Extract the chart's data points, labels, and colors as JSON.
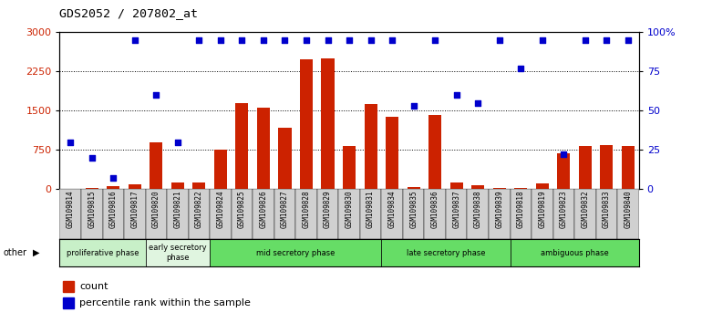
{
  "title": "GDS2052 / 207802_at",
  "samples": [
    "GSM109814",
    "GSM109815",
    "GSM109816",
    "GSM109817",
    "GSM109820",
    "GSM109821",
    "GSM109822",
    "GSM109824",
    "GSM109825",
    "GSM109826",
    "GSM109827",
    "GSM109828",
    "GSM109829",
    "GSM109830",
    "GSM109831",
    "GSM109834",
    "GSM109835",
    "GSM109836",
    "GSM109837",
    "GSM109838",
    "GSM109839",
    "GSM109818",
    "GSM109819",
    "GSM109823",
    "GSM109832",
    "GSM109833",
    "GSM109840"
  ],
  "counts": [
    10,
    20,
    50,
    90,
    900,
    130,
    130,
    750,
    1650,
    1550,
    1180,
    2480,
    2500,
    820,
    1620,
    1380,
    40,
    1420,
    120,
    80,
    20,
    20,
    110,
    680,
    820,
    840,
    820
  ],
  "percentiles": [
    30,
    20,
    7,
    95,
    60,
    30,
    95,
    95,
    95,
    95,
    95,
    95,
    95,
    95,
    95,
    95,
    53,
    95,
    60,
    55,
    95,
    77,
    95,
    22,
    95,
    95,
    95
  ],
  "phases": [
    {
      "name": "proliferative phase",
      "start": 0,
      "end": 3,
      "color": "#c8f0c8"
    },
    {
      "name": "early secretory\nphase",
      "start": 4,
      "end": 6,
      "color": "#e8f8e8"
    },
    {
      "name": "mid secretory phase",
      "start": 7,
      "end": 14,
      "color": "#66dd66"
    },
    {
      "name": "late secretory phase",
      "start": 15,
      "end": 20,
      "color": "#66dd66"
    },
    {
      "name": "ambiguous phase",
      "start": 21,
      "end": 26,
      "color": "#66dd66"
    }
  ],
  "bar_color": "#cc2200",
  "dot_color": "#0000cc",
  "ylim_left": [
    0,
    3000
  ],
  "ylim_right": [
    0,
    100
  ],
  "yticks_left": [
    0,
    750,
    1500,
    2250,
    3000
  ],
  "yticks_right": [
    0,
    25,
    50,
    75,
    100
  ],
  "plot_bg": "#ffffff",
  "fig_bg": "#ffffff",
  "legend_count_color": "#cc2200",
  "legend_percentile_color": "#0000cc"
}
